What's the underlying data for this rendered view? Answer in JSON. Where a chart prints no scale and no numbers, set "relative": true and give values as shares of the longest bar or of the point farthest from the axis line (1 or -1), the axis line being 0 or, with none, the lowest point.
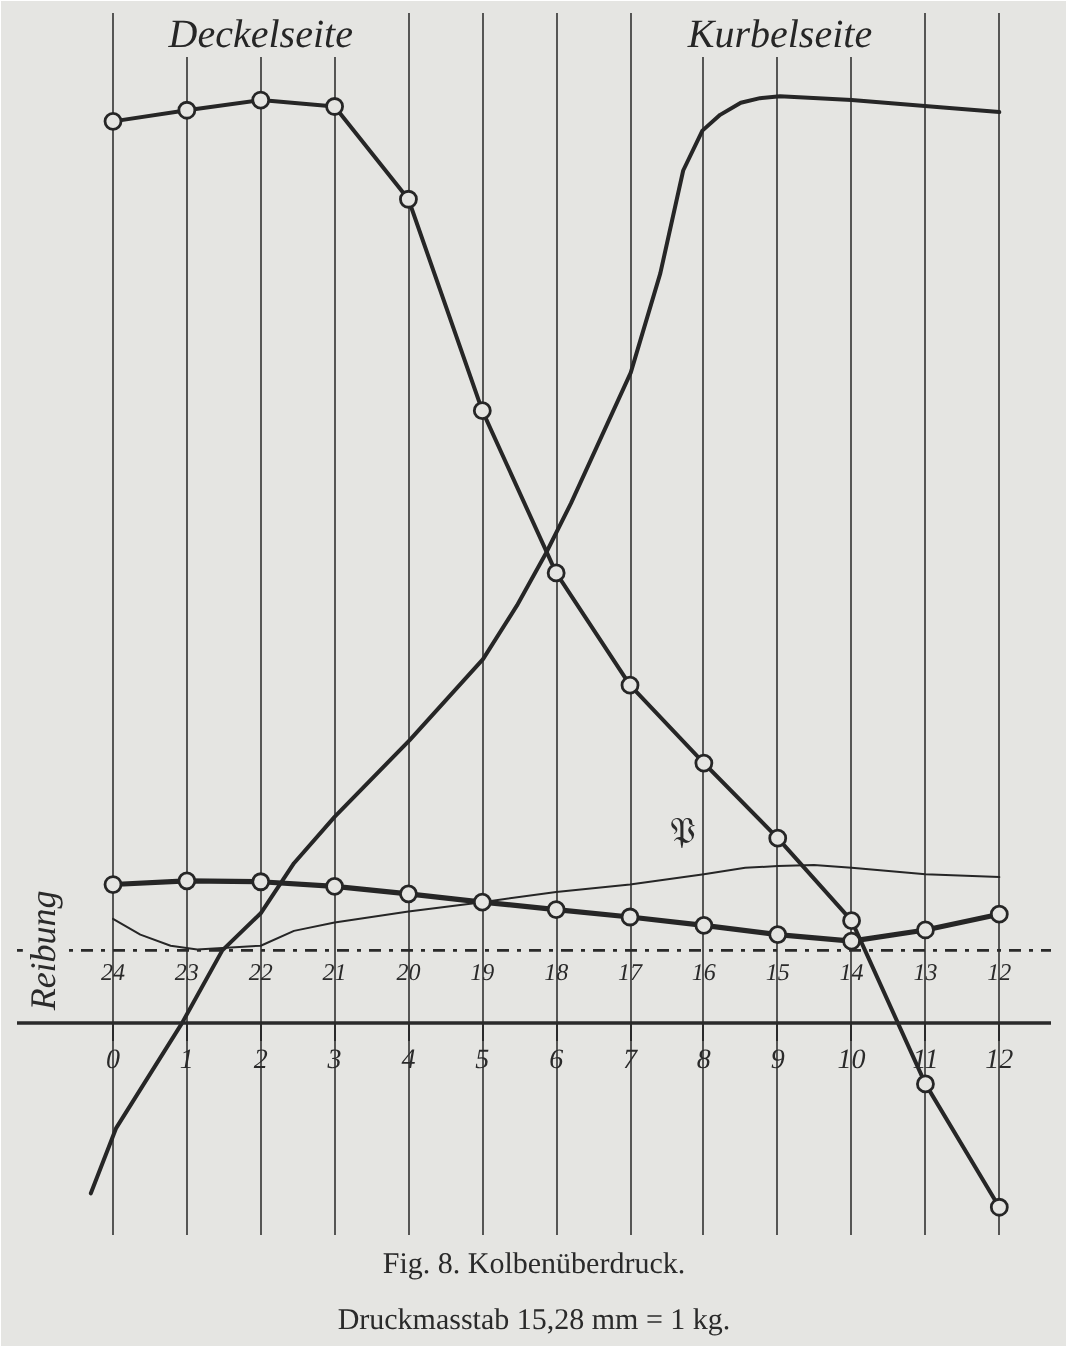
{
  "chart_data": {
    "type": "line",
    "relative": true,
    "title": "Fig. 8. Kolbenüberdruck.",
    "subtitle": "Druckmasstab 15,28 mm = 1 kg.",
    "x": [
      0,
      1,
      2,
      3,
      4,
      5,
      6,
      7,
      8,
      9,
      10,
      11,
      12
    ],
    "xlim": [
      -1.3,
      12.7
    ],
    "xticks": [
      0,
      1,
      2,
      3,
      4,
      5,
      6,
      7,
      8,
      9,
      10,
      11,
      12
    ],
    "x2lim": [
      25.3,
      11.3
    ],
    "x2ticks": [
      24,
      23,
      22,
      21,
      20,
      19,
      18,
      17,
      16,
      15,
      14,
      13,
      12
    ],
    "grid": "x",
    "series": [
      {
        "name": "Deckelseite",
        "color": "#262626",
        "marker": "circle",
        "values": [
          0.973,
          0.985,
          0.996,
          0.989,
          0.889,
          0.661,
          0.486,
          0.365,
          0.281,
          0.2,
          0.111,
          -0.065,
          -0.198
        ]
      },
      {
        "name": "Kurbelseite",
        "color": "#262626",
        "marker": "none",
        "x": [
          -0.3,
          0.04,
          0.93,
          1.48,
          2,
          2.45,
          3,
          4.02,
          5.01,
          5.47,
          5.86,
          6.2,
          7.01,
          7.41,
          7.72,
          7.98,
          8.22,
          8.5,
          8.76,
          9.03,
          10,
          11.24,
          12
        ],
        "values": [
          -0.183,
          -0.113,
          0.0,
          0.079,
          0.119,
          0.173,
          0.223,
          0.306,
          0.393,
          0.451,
          0.507,
          0.561,
          0.702,
          0.809,
          0.92,
          0.963,
          0.98,
          0.993,
          0.998,
          1.0,
          0.996,
          0.988,
          0.983
        ]
      },
      {
        "color": "#262626",
        "marker": "circle",
        "values": [
          0.15,
          0.154,
          0.153,
          0.148,
          0.14,
          0.131,
          0.123,
          0.115,
          0.106,
          0.096,
          0.089,
          0.101,
          0.118
        ]
      },
      {
        "color": "#262626",
        "marker": "none",
        "x": [
          0,
          0.37,
          0.78,
          1.14,
          2,
          2.45,
          3,
          4,
          5,
          6,
          7,
          8,
          8.56,
          9,
          9.49,
          10,
          11,
          12
        ],
        "values": [
          0.113,
          0.096,
          0.084,
          0.08,
          0.084,
          0.1,
          0.109,
          0.121,
          0.131,
          0.142,
          0.15,
          0.161,
          0.168,
          0.17,
          0.171,
          0.168,
          0.161,
          0.158
        ]
      }
    ],
    "ref_lines": [
      {
        "axis": "y",
        "value": 0.079,
        "line_style": "dashdot"
      }
    ],
    "annotations": [
      {
        "text": "Reibung",
        "x": -0.95,
        "y": 0.079
      },
      {
        "text": "𝔓",
        "x": 8,
        "y": 0.281
      }
    ]
  }
}
